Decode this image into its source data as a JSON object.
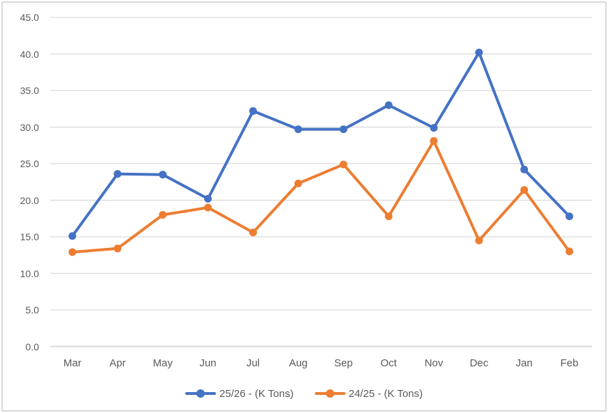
{
  "colors": {
    "gridline": "#d9d9d9",
    "axis_line": "#d9d9d9",
    "tick_text": "#595959",
    "legend_text": "#595959",
    "background": "#ffffff",
    "border": "#d9d9d9",
    "series_blue": "#4472c4",
    "series_orange": "#ed7d31"
  },
  "chart_data": {
    "type": "line",
    "title": "",
    "xlabel": "",
    "ylabel": "",
    "categories": [
      "Mar",
      "Apr",
      "May",
      "Jun",
      "Jul",
      "Aug",
      "Sep",
      "Oct",
      "Nov",
      "Dec",
      "Jan",
      "Feb"
    ],
    "series": [
      {
        "name": "25/26 - (K Tons)",
        "color": "#4472c4",
        "values": [
          15.1,
          23.6,
          23.5,
          20.2,
          32.2,
          29.7,
          29.7,
          33.0,
          29.9,
          40.2,
          24.2,
          17.8
        ]
      },
      {
        "name": "24/25 - (K Tons)",
        "color": "#ed7d31",
        "values": [
          12.9,
          13.4,
          18.0,
          19.0,
          15.6,
          22.3,
          24.9,
          17.8,
          28.1,
          14.5,
          21.4,
          13.0
        ]
      }
    ],
    "ylim": [
      0,
      45
    ],
    "y_tick_step": 5,
    "y_ticks": [
      "0.0",
      "5.0",
      "10.0",
      "15.0",
      "20.0",
      "25.0",
      "30.0",
      "35.0",
      "40.0",
      "45.0"
    ],
    "grid": "horizontal",
    "legend_position": "bottom",
    "marker": "circle",
    "line_width": 4
  }
}
